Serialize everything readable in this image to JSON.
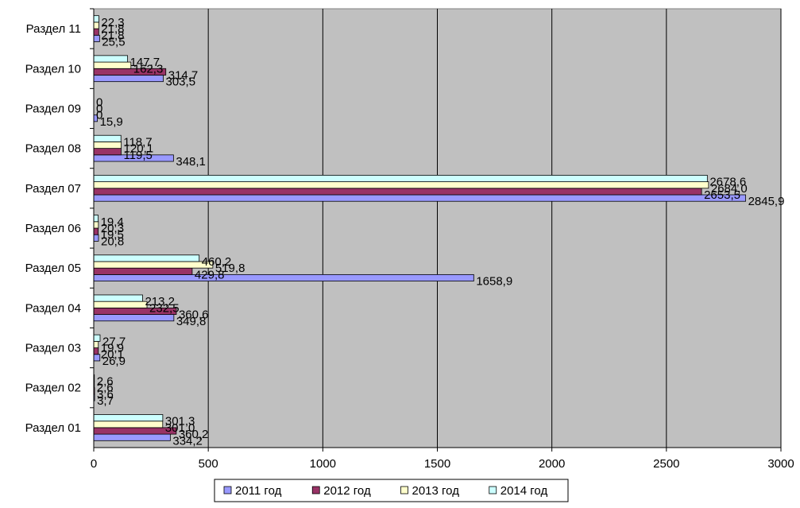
{
  "chart_data": {
    "type": "bar",
    "orientation": "horizontal",
    "categories": [
      "Раздел 01",
      "Раздел 02",
      "Раздел 03",
      "Раздел 04",
      "Раздел 05",
      "Раздел 06",
      "Раздел 07",
      "Раздел 08",
      "Раздел 09",
      "Раздел 10",
      "Раздел 11"
    ],
    "series": [
      {
        "name": "2011 год",
        "color": "#9999ff",
        "values": [
          334.2,
          3.7,
          26.9,
          349.8,
          1658.9,
          20.8,
          2845.9,
          348.1,
          15.9,
          303.5,
          25.5
        ],
        "labels": [
          "334,2",
          "3,7",
          "26,9",
          "349,8",
          "1658,9",
          "20,8",
          "2845,9",
          "348,1",
          "15,9",
          "303,5",
          "25,5"
        ]
      },
      {
        "name": "2012 год",
        "color": "#993366",
        "values": [
          360.2,
          3.6,
          20.1,
          360.6,
          429.8,
          19.5,
          2653.5,
          119.5,
          0,
          314.7,
          21.8
        ],
        "labels": [
          "360,2",
          "3,6",
          "20,1",
          "360,6",
          "429,8",
          "19,5",
          "2653,5",
          "119,5",
          "0",
          "314,7",
          "21,8"
        ]
      },
      {
        "name": "2013 год",
        "color": "#ffffcc",
        "values": [
          301.0,
          2.6,
          19.9,
          232.5,
          519.8,
          20.3,
          2684.0,
          120.1,
          0,
          162.3,
          21.8
        ],
        "labels": [
          "301,0",
          "2,6",
          "19,9",
          "232,5",
          "519,8",
          "20,3",
          "2684,0",
          "120,1",
          "0",
          "162,3",
          "21,8"
        ]
      },
      {
        "name": "2014 год",
        "color": "#ccffff",
        "values": [
          301.3,
          2.6,
          27.7,
          213.2,
          460.2,
          19.4,
          2678.6,
          118.7,
          0,
          147.7,
          22.3
        ],
        "labels": [
          "301,3",
          "2,6",
          "27,7",
          "213,2",
          "460,2",
          "19,4",
          "2678,6",
          "118,7",
          "0",
          "147,7",
          "22,3"
        ]
      }
    ],
    "xlim": [
      0,
      3000
    ],
    "x_ticks": [
      "0",
      "500",
      "1000",
      "1500",
      "2000",
      "2500",
      "3000"
    ],
    "plot_background": "#c0c0c0",
    "grid": true,
    "legend_position": "bottom"
  }
}
